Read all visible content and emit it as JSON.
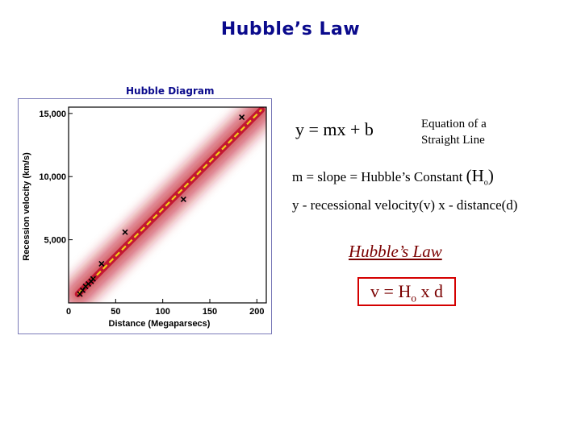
{
  "title": "Hubble’s Law",
  "subtitle": "Hubble Diagram",
  "equation": "y = mx + b",
  "equation_desc_line1": "Equation of a",
  "equation_desc_line2": "Straight Line",
  "slope_text": "m = slope = Hubble’s Constant ",
  "slope_H": "(H",
  "slope_sub": "o",
  "slope_close": ")",
  "variables": "y -  recessional velocity(v)   x - distance(d)",
  "law_title": "Hubble’s Law",
  "law_eq_left": "v = H",
  "law_eq_sub": "o",
  "law_eq_right": " x d",
  "colors": {
    "title": "#0a0a8c",
    "band": "#c0102a",
    "fit_line": "#f2d21a",
    "law": "#7a0000",
    "box": "#d40000"
  },
  "chart_data": {
    "type": "scatter",
    "xlabel": "Distance (Megaparsecs)",
    "ylabel": "Recession velocity (km/s)",
    "xlim": [
      0,
      210
    ],
    "ylim": [
      0,
      15500
    ],
    "xticks": [
      0,
      50,
      100,
      150,
      200
    ],
    "xtick_labels": [
      "0",
      "50",
      "100",
      "150",
      "200"
    ],
    "yticks": [
      5000,
      10000,
      15000
    ],
    "ytick_labels": [
      "5,000",
      "10,000",
      "15,000"
    ],
    "points": [
      {
        "x": 12,
        "y": 700
      },
      {
        "x": 15,
        "y": 1000
      },
      {
        "x": 18,
        "y": 1300
      },
      {
        "x": 21,
        "y": 1500
      },
      {
        "x": 24,
        "y": 1700
      },
      {
        "x": 26,
        "y": 1900
      },
      {
        "x": 35,
        "y": 3100
      },
      {
        "x": 60,
        "y": 5600
      },
      {
        "x": 122,
        "y": 8200
      },
      {
        "x": 184,
        "y": 14700
      }
    ],
    "fit_line": {
      "x": [
        10,
        205
      ],
      "y": [
        700,
        15300
      ]
    }
  }
}
